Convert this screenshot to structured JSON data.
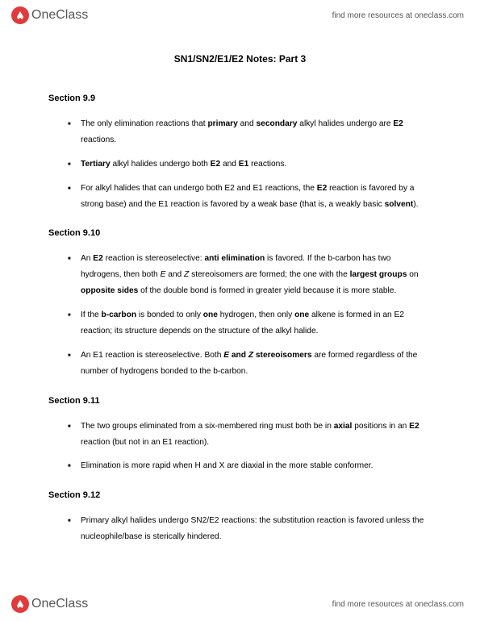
{
  "brand": {
    "name_left": "One",
    "name_right": "Class",
    "tagline": "find more resources at oneclass.com"
  },
  "doc": {
    "title": "SN1/SN2/E1/E2 Notes: Part 3"
  },
  "sections": [
    {
      "heading": "Section 9.9",
      "items": [
        "The only elimination reactions that <b>primary</b> and <b>secondary</b> alkyl halides undergo are <b>E2</b> reactions.",
        "<b>Tertiary</b> alkyl halides undergo both <b>E2</b> and <b>E1</b> reactions.",
        "For alkyl halides that can undergo both E2 and E1 reactions, the <b>E2</b> reaction is favored by a strong base) and the E1 reaction is favored by a weak base (that is, a weakly basic <b>solvent</b>)."
      ]
    },
    {
      "heading": "Section 9.10",
      "items": [
        "An <b>E2</b> reaction is stereoselective: <b>anti elimination</b> is favored. If the b-carbon has two hydrogens, then both <i>E</i> and <i>Z</i> stereoisomers are formed; the one with the <b>largest groups</b> on <b>opposite sides</b> of the double bond is formed in greater yield because it is more stable.",
        "If the <b>b-carbon</b> is bonded to only <b>one</b> hydrogen, then only <b>one</b> alkene is formed in an E2 reaction; its structure depends on the structure of the alkyl halide.",
        "An E1 reaction is stereoselective. Both <b><i>E</i> and <i>Z</i> stereoisomers</b> are formed regardless of the number of hydrogens bonded to the b-carbon."
      ]
    },
    {
      "heading": "Section 9.11",
      "items": [
        "The two groups eliminated from a six-membered ring must both be in <b>axial</b> positions in an <b>E2</b> reaction (but not in an E1 reaction).",
        "Elimination is more rapid when H and X are diaxial in the more stable conformer."
      ]
    },
    {
      "heading": "Section 9.12",
      "items": [
        "Primary alkyl halides undergo SN2/E2 reactions: the substitution reaction is favored unless the nucleophile/base is sterically hindered."
      ]
    }
  ]
}
